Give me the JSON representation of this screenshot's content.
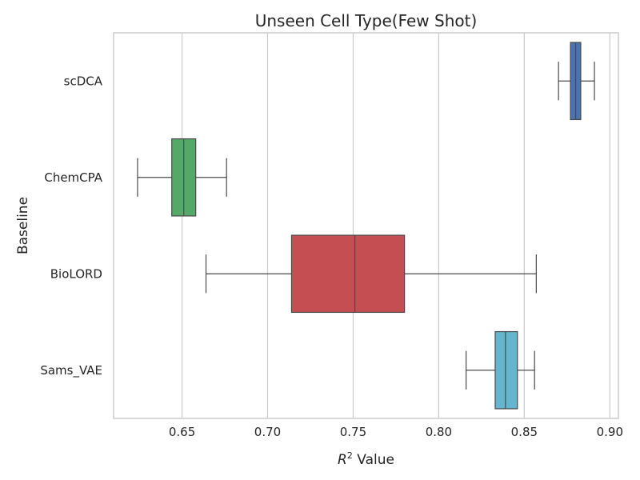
{
  "chart_data": {
    "type": "boxplot",
    "orientation": "horizontal",
    "title": "Unseen Cell Type(Few Shot)",
    "xlabel": "R",
    "xlabel_superscript": "2",
    "xlabel_suffix": " Value",
    "ylabel": "Baseline",
    "xlim": [
      0.61,
      0.905
    ],
    "xticks": [
      0.65,
      0.7,
      0.75,
      0.8,
      0.85,
      0.9
    ],
    "xtick_labels": [
      "0.65",
      "0.70",
      "0.75",
      "0.80",
      "0.85",
      "0.90"
    ],
    "grid": true,
    "categories": [
      "scDCA",
      "ChemCPA",
      "BioLORD",
      "Sams_VAE"
    ],
    "boxes": [
      {
        "name": "scDCA",
        "whisker_low": 0.87,
        "q1": 0.877,
        "median": 0.88,
        "q3": 0.883,
        "whisker_high": 0.891,
        "color": "#4c72b0"
      },
      {
        "name": "ChemCPA",
        "whisker_low": 0.624,
        "q1": 0.644,
        "median": 0.651,
        "q3": 0.658,
        "whisker_high": 0.676,
        "color": "#55a868"
      },
      {
        "name": "BioLORD",
        "whisker_low": 0.664,
        "q1": 0.714,
        "median": 0.751,
        "q3": 0.78,
        "whisker_high": 0.857,
        "color": "#c44e52"
      },
      {
        "name": "Sams_VAE",
        "whisker_low": 0.816,
        "q1": 0.833,
        "median": 0.839,
        "q3": 0.846,
        "whisker_high": 0.856,
        "color": "#64b5cd"
      }
    ]
  }
}
